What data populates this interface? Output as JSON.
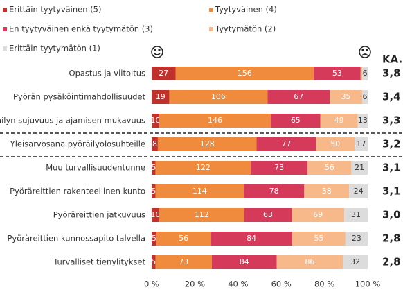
{
  "chart_data": {
    "type": "stacked_percent_barh",
    "categories": [
      "Opastus ja viitoitus",
      "Pyörän pysäköintimahdollisuudet",
      "Pyöräilyn sujuvuus ja ajamisen mukavuus",
      "Yleisarvosana pyöräilyolosuhteille",
      "Muu turvallisuudentunne",
      "Pyöräreittien rakenteellinen kunto",
      "Pyöräreittien jatkuvuus",
      "Pyöräreittien kunnossapito talvella",
      "Turvalliset tienylitykset"
    ],
    "series": [
      {
        "name": "Erittäin tyytyväinen (5)",
        "color": "#c0312b",
        "values": [
          27,
          19,
          10,
          8,
          5,
          5,
          10,
          5,
          5
        ]
      },
      {
        "name": "Tyytyväinen (4)",
        "color": "#f08a3c",
        "values": [
          156,
          106,
          146,
          128,
          122,
          114,
          112,
          56,
          73
        ]
      },
      {
        "name": "En tyytyväinen enkä tyytymätön (3)",
        "color": "#d63a5a",
        "values": [
          53,
          67,
          65,
          77,
          73,
          78,
          63,
          84,
          84
        ]
      },
      {
        "name": "Tyytymätön (2)",
        "color": "#f7b98a",
        "values": [
          2,
          35,
          49,
          50,
          56,
          58,
          69,
          55,
          86
        ],
        "value_labels": [
          null,
          "35",
          "49",
          "50",
          "56",
          "58",
          "69",
          "55",
          "86"
        ]
      },
      {
        "name": "Erittäin tyytymätön (1)",
        "color": "#dcdcdc",
        "values": [
          6,
          6,
          13,
          17,
          21,
          24,
          31,
          23,
          32
        ]
      }
    ],
    "average_header": "KA.",
    "averages": [
      "3,8",
      "3,4",
      "3,3",
      "3,2",
      "3,1",
      "3,1",
      "3,0",
      "2,8",
      "2,8"
    ],
    "xlim": [
      0,
      100
    ],
    "xticks": [
      {
        "value": 0,
        "label": "0 %"
      },
      {
        "value": 20,
        "label": "20 %"
      },
      {
        "value": 40,
        "label": "40 %"
      },
      {
        "value": 60,
        "label": "60 %"
      },
      {
        "value": 80,
        "label": "80 %"
      },
      {
        "value": 100,
        "label": "100 %"
      }
    ]
  }
}
